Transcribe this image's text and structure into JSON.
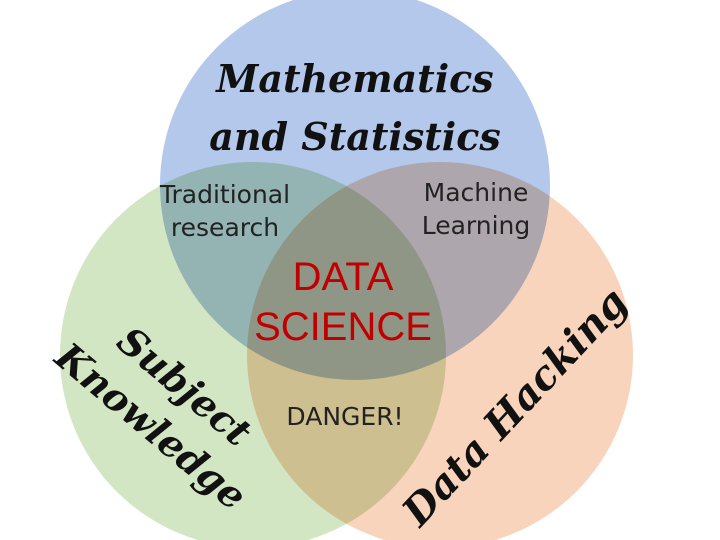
{
  "sets": {
    "math": {
      "line1": "Mathematics",
      "line2": "and Statistics",
      "color": "#b3c8eb"
    },
    "subject": {
      "line1": "Subject",
      "line2": "Knowledge",
      "color": "#d3e6c4"
    },
    "hacking": {
      "label": "Data Hacking",
      "color": "#f8d4bc"
    }
  },
  "overlaps": {
    "math_subject": {
      "line1": "Traditional",
      "line2": "research"
    },
    "math_hacking": {
      "line1": "Machine",
      "line2": "Learning"
    },
    "subject_hacking": {
      "label": "DANGER!"
    },
    "center": {
      "line1": "DATA",
      "line2": "SCIENCE",
      "color": "#c00000"
    }
  }
}
